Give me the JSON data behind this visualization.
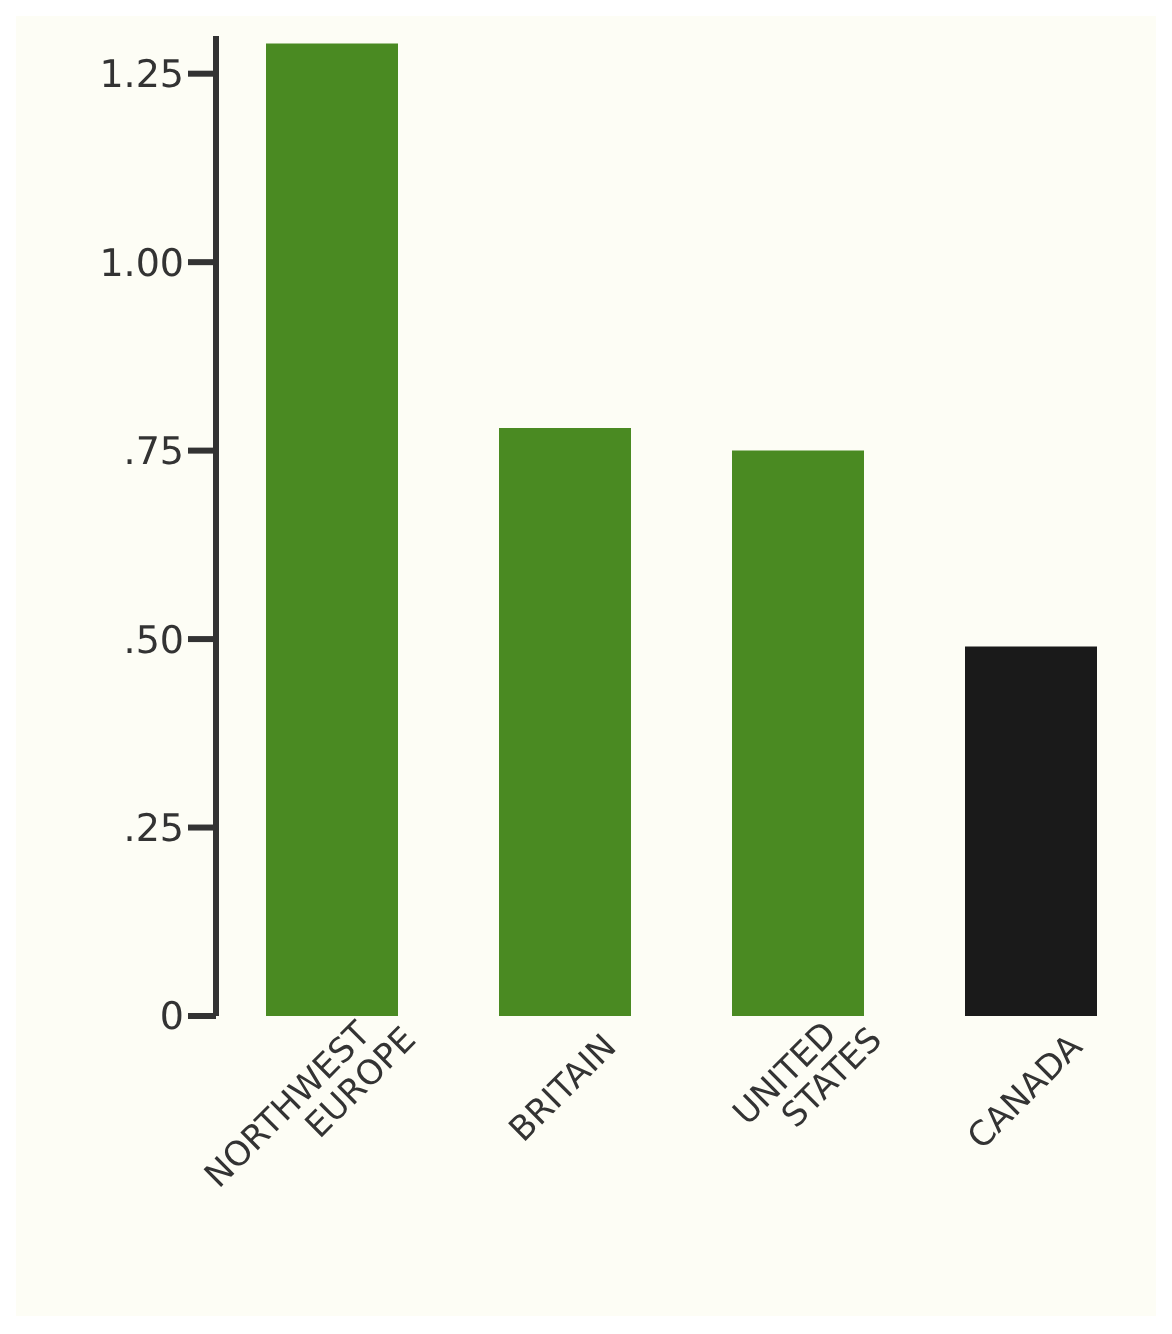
{
  "chart_data": {
    "type": "bar",
    "categories": [
      "NORTHWEST EUROPE",
      "BRITAIN",
      "UNITED STATES",
      "CANADA"
    ],
    "values": [
      1.29,
      0.78,
      0.75,
      0.49
    ],
    "colors": [
      "#4a8a22",
      "#4a8a22",
      "#4a8a22",
      "#1a1a1a"
    ],
    "ylim": [
      0,
      1.3
    ],
    "yticks": [
      0,
      {
        "value": 0.25,
        "label": ".25"
      },
      {
        "value": 0.5,
        "label": ".50"
      },
      {
        "value": 0.75,
        "label": ".75"
      },
      {
        "value": 1,
        "label": "1.00"
      },
      1.25
    ],
    "grid": false,
    "legend": false
  }
}
